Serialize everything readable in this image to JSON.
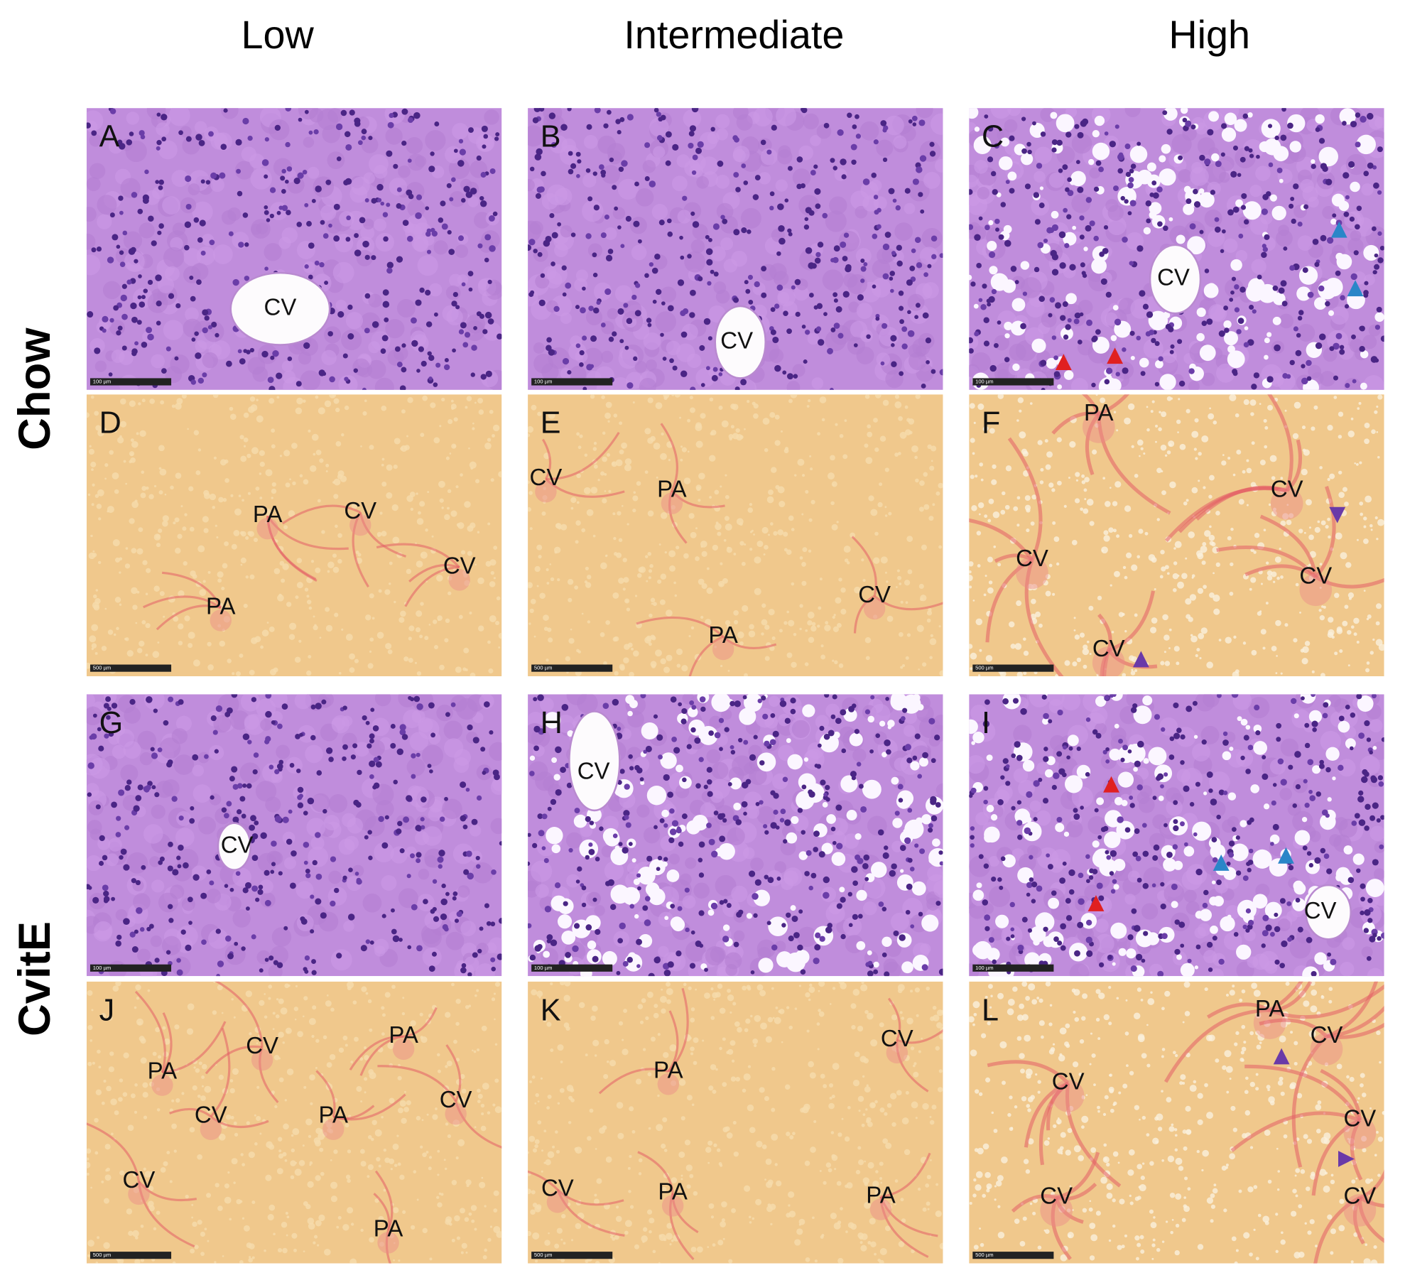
{
  "header": {
    "columns": [
      "Low",
      "Intermediate",
      "High"
    ]
  },
  "rows": {
    "labels": [
      "Chow",
      "CvitE"
    ]
  },
  "panels": [
    {
      "letter": "A",
      "labels": [
        "CV"
      ],
      "scale_bar": "100 µm"
    },
    {
      "letter": "B",
      "labels": [
        "CV"
      ],
      "scale_bar": "100 µm"
    },
    {
      "letter": "C",
      "labels": [
        "CV"
      ],
      "scale_bar": "100 µm"
    },
    {
      "letter": "D",
      "labels": [
        "PA",
        "CV",
        "CV",
        "PA"
      ],
      "scale_bar": "500 µm"
    },
    {
      "letter": "E",
      "labels": [
        "CV",
        "PA",
        "CV",
        "PA"
      ],
      "scale_bar": "500 µm"
    },
    {
      "letter": "F",
      "labels": [
        "PA",
        "CV",
        "CV",
        "CV",
        "CV"
      ],
      "scale_bar": "500 µm"
    },
    {
      "letter": "G",
      "labels": [
        "CV"
      ],
      "scale_bar": "100 µm"
    },
    {
      "letter": "H",
      "labels": [
        "CV"
      ],
      "scale_bar": "100 µm"
    },
    {
      "letter": "I",
      "labels": [
        "CV"
      ],
      "scale_bar": "100 µm"
    },
    {
      "letter": "J",
      "labels": [
        "CV",
        "PA",
        "PA",
        "CV",
        "PA",
        "CV",
        "CV",
        "PA"
      ],
      "scale_bar": "500 µm"
    },
    {
      "letter": "K",
      "labels": [
        "CV",
        "PA",
        "CV",
        "PA",
        "PA"
      ],
      "scale_bar": "500 µm"
    },
    {
      "letter": "L",
      "labels": [
        "PA",
        "CV",
        "CV",
        "CV",
        "CV",
        "CV"
      ],
      "scale_bar": "500 µm"
    }
  ]
}
